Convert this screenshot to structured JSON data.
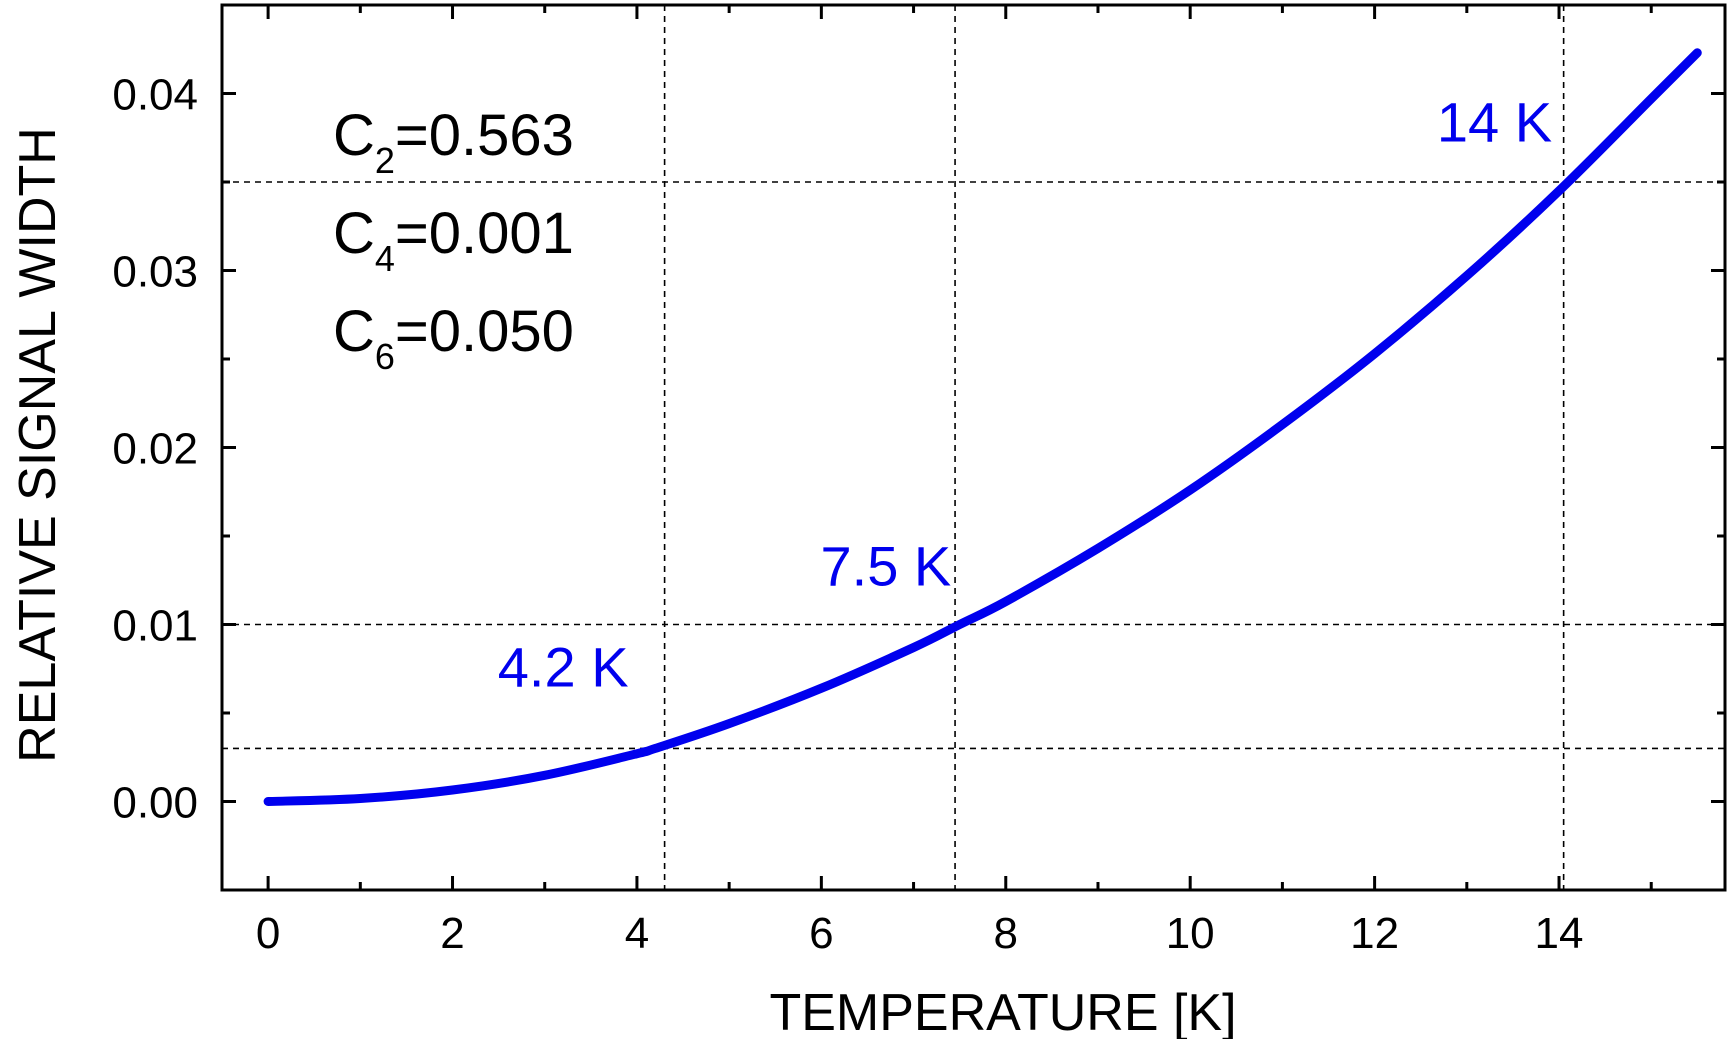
{
  "colors": {
    "curve": "#0000ee",
    "annotation": "#0000ee",
    "axis": "#000000",
    "guide": "#000000"
  },
  "chart_data": {
    "type": "line",
    "title": "",
    "xlabel": "TEMPERATURE [K]",
    "ylabel": "RELATIVE SIGNAL WIDTH",
    "xlim": [
      -0.5,
      15.8
    ],
    "ylim": [
      -0.005,
      0.045
    ],
    "x_ticks": [
      {
        "value": 0,
        "label": "0"
      },
      {
        "value": 2,
        "label": "2"
      },
      {
        "value": 4,
        "label": "4"
      },
      {
        "value": 6,
        "label": "6"
      },
      {
        "value": 8,
        "label": "8"
      },
      {
        "value": 10,
        "label": "10"
      },
      {
        "value": 12,
        "label": "12"
      },
      {
        "value": 14,
        "label": "14"
      }
    ],
    "x_minor_ticks": [
      1,
      3,
      5,
      7,
      9,
      11,
      13,
      15
    ],
    "y_ticks": [
      {
        "value": 0.0,
        "label": "0.00"
      },
      {
        "value": 0.01,
        "label": "0.01"
      },
      {
        "value": 0.02,
        "label": "0.02"
      },
      {
        "value": 0.03,
        "label": "0.03"
      },
      {
        "value": 0.04,
        "label": "0.04"
      }
    ],
    "y_minor_ticks": [
      0.005,
      0.015,
      0.025,
      0.035
    ],
    "grid": false,
    "series": [
      {
        "x": [
          0,
          1,
          2,
          3,
          4,
          4.2,
          5,
          6,
          7,
          7.5,
          8,
          9,
          10,
          11,
          12,
          13,
          14,
          15,
          15.5
        ],
        "y": [
          0.0,
          0.00017,
          0.00065,
          0.00148,
          0.0027,
          0.003,
          0.0044,
          0.0064,
          0.0087,
          0.01,
          0.0113,
          0.0143,
          0.0176,
          0.0213,
          0.0253,
          0.0297,
          0.0345,
          0.0397,
          0.0423
        ]
      }
    ],
    "guide_lines": {
      "vertical": [
        4.3,
        7.45,
        14.05
      ],
      "horizontal": [
        0.003,
        0.01,
        0.035
      ]
    },
    "annotations": [
      {
        "text": "4.2 K",
        "x": 3.2,
        "y": 0.0065
      },
      {
        "text": "7.5 K",
        "x": 6.7,
        "y": 0.0122
      },
      {
        "text": "14 K",
        "x": 13.3,
        "y": 0.0373
      }
    ],
    "coefficients": [
      {
        "base": "C",
        "sub": "2",
        "value": "=0.563"
      },
      {
        "base": "C",
        "sub": "4",
        "value": "=0.001"
      },
      {
        "base": "C",
        "sub": "6",
        "value": "=0.050"
      }
    ]
  }
}
